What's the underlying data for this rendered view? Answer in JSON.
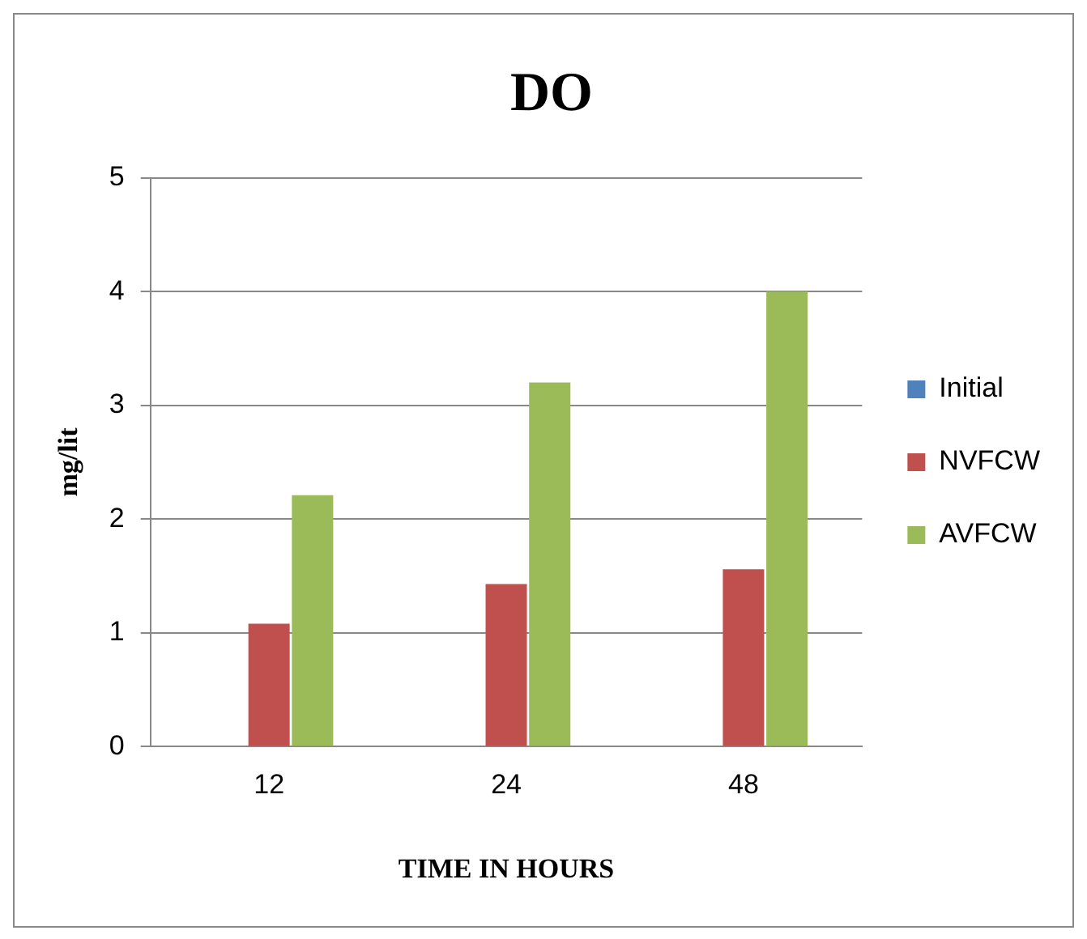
{
  "chart_data": {
    "type": "bar",
    "title": "DO",
    "xlabel": "TIME IN HOURS",
    "ylabel": "mg/lit",
    "categories": [
      "12",
      "24",
      "48"
    ],
    "series": [
      {
        "name": "Initial",
        "color": "#4f81bd",
        "values": [
          0,
          0,
          0
        ]
      },
      {
        "name": "NVFCW",
        "color": "#c0504d",
        "values": [
          1.08,
          1.43,
          1.56
        ]
      },
      {
        "name": "AVFCW",
        "color": "#9bbb59",
        "values": [
          2.21,
          3.2,
          4.0
        ]
      }
    ],
    "ylim": [
      0,
      5
    ],
    "yticks": [
      0,
      1,
      2,
      3,
      4,
      5
    ],
    "grid": "y",
    "legend": "right"
  }
}
